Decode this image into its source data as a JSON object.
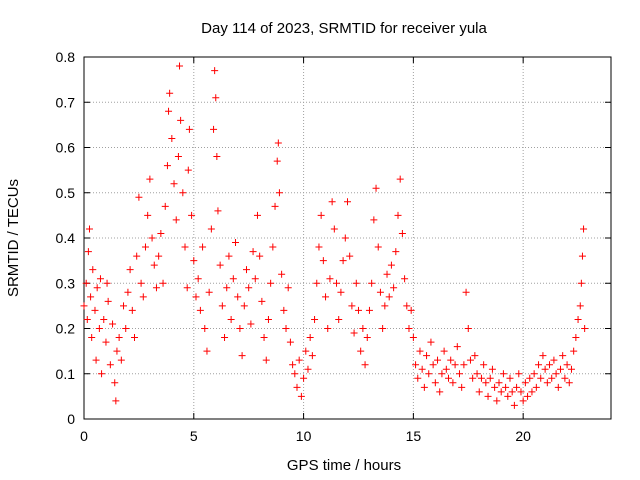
{
  "chart_data": {
    "type": "scatter",
    "title": "Day 114 of 2023, SRMTID for receiver yula",
    "xlabel": "GPS time / hours",
    "ylabel": "SRMTID / TECUs",
    "xlim": [
      0,
      24
    ],
    "ylim": [
      0,
      0.8
    ],
    "x_ticks": [
      0,
      5,
      10,
      15,
      20
    ],
    "x_tick_labels": [
      "0",
      "5",
      "10",
      "15",
      "20"
    ],
    "y_ticks": [
      0,
      0.1,
      0.2,
      0.3,
      0.4,
      0.5,
      0.6,
      0.7,
      0.8
    ],
    "y_tick_labels": [
      "0",
      "0.1",
      "0.2",
      "0.3",
      "0.4",
      "0.5",
      "0.6",
      "0.7",
      "0.8"
    ],
    "grid": true,
    "marker": "+",
    "colors": {
      "points": "#ff0000",
      "grid": "#a0a0a0",
      "frame": "#000000"
    },
    "series": [
      {
        "name": "SRMTID",
        "points": [
          [
            0.0,
            0.25
          ],
          [
            0.1,
            0.3
          ],
          [
            0.15,
            0.22
          ],
          [
            0.2,
            0.37
          ],
          [
            0.25,
            0.42
          ],
          [
            0.3,
            0.27
          ],
          [
            0.35,
            0.18
          ],
          [
            0.4,
            0.33
          ],
          [
            0.5,
            0.24
          ],
          [
            0.55,
            0.13
          ],
          [
            0.6,
            0.29
          ],
          [
            0.7,
            0.2
          ],
          [
            0.75,
            0.31
          ],
          [
            0.8,
            0.1
          ],
          [
            0.9,
            0.22
          ],
          [
            1.0,
            0.17
          ],
          [
            1.05,
            0.3
          ],
          [
            1.1,
            0.26
          ],
          [
            1.2,
            0.12
          ],
          [
            1.3,
            0.21
          ],
          [
            1.4,
            0.08
          ],
          [
            1.45,
            0.04
          ],
          [
            1.5,
            0.15
          ],
          [
            1.6,
            0.18
          ],
          [
            1.7,
            0.13
          ],
          [
            1.8,
            0.25
          ],
          [
            1.9,
            0.2
          ],
          [
            2.0,
            0.28
          ],
          [
            2.1,
            0.33
          ],
          [
            2.2,
            0.24
          ],
          [
            2.3,
            0.18
          ],
          [
            2.4,
            0.36
          ],
          [
            2.5,
            0.49
          ],
          [
            2.6,
            0.3
          ],
          [
            2.7,
            0.27
          ],
          [
            2.8,
            0.38
          ],
          [
            2.9,
            0.45
          ],
          [
            3.0,
            0.53
          ],
          [
            3.1,
            0.4
          ],
          [
            3.2,
            0.34
          ],
          [
            3.3,
            0.29
          ],
          [
            3.4,
            0.36
          ],
          [
            3.5,
            0.41
          ],
          [
            3.6,
            0.3
          ],
          [
            3.7,
            0.47
          ],
          [
            3.8,
            0.56
          ],
          [
            3.85,
            0.68
          ],
          [
            3.9,
            0.72
          ],
          [
            4.0,
            0.62
          ],
          [
            4.1,
            0.52
          ],
          [
            4.2,
            0.44
          ],
          [
            4.3,
            0.58
          ],
          [
            4.35,
            0.78
          ],
          [
            4.4,
            0.66
          ],
          [
            4.5,
            0.5
          ],
          [
            4.6,
            0.38
          ],
          [
            4.7,
            0.29
          ],
          [
            4.75,
            0.55
          ],
          [
            4.8,
            0.64
          ],
          [
            4.9,
            0.45
          ],
          [
            5.0,
            0.35
          ],
          [
            5.1,
            0.27
          ],
          [
            5.2,
            0.31
          ],
          [
            5.3,
            0.24
          ],
          [
            5.4,
            0.38
          ],
          [
            5.5,
            0.2
          ],
          [
            5.6,
            0.15
          ],
          [
            5.7,
            0.28
          ],
          [
            5.8,
            0.42
          ],
          [
            5.9,
            0.64
          ],
          [
            5.95,
            0.77
          ],
          [
            6.0,
            0.71
          ],
          [
            6.05,
            0.58
          ],
          [
            6.1,
            0.46
          ],
          [
            6.2,
            0.34
          ],
          [
            6.3,
            0.25
          ],
          [
            6.4,
            0.18
          ],
          [
            6.5,
            0.29
          ],
          [
            6.6,
            0.36
          ],
          [
            6.7,
            0.22
          ],
          [
            6.8,
            0.31
          ],
          [
            6.9,
            0.39
          ],
          [
            7.0,
            0.27
          ],
          [
            7.1,
            0.2
          ],
          [
            7.2,
            0.14
          ],
          [
            7.3,
            0.25
          ],
          [
            7.4,
            0.33
          ],
          [
            7.5,
            0.29
          ],
          [
            7.6,
            0.21
          ],
          [
            7.7,
            0.37
          ],
          [
            7.8,
            0.31
          ],
          [
            7.9,
            0.45
          ],
          [
            8.0,
            0.36
          ],
          [
            8.1,
            0.26
          ],
          [
            8.2,
            0.18
          ],
          [
            8.3,
            0.13
          ],
          [
            8.4,
            0.22
          ],
          [
            8.5,
            0.3
          ],
          [
            8.6,
            0.38
          ],
          [
            8.7,
            0.47
          ],
          [
            8.8,
            0.57
          ],
          [
            8.85,
            0.61
          ],
          [
            8.9,
            0.5
          ],
          [
            9.0,
            0.32
          ],
          [
            9.1,
            0.24
          ],
          [
            9.2,
            0.2
          ],
          [
            9.3,
            0.29
          ],
          [
            9.4,
            0.17
          ],
          [
            9.5,
            0.12
          ],
          [
            9.6,
            0.1
          ],
          [
            9.7,
            0.07
          ],
          [
            9.8,
            0.13
          ],
          [
            9.9,
            0.05
          ],
          [
            10.0,
            0.09
          ],
          [
            10.1,
            0.15
          ],
          [
            10.2,
            0.11
          ],
          [
            10.3,
            0.18
          ],
          [
            10.4,
            0.14
          ],
          [
            10.5,
            0.22
          ],
          [
            10.6,
            0.3
          ],
          [
            10.7,
            0.38
          ],
          [
            10.8,
            0.45
          ],
          [
            10.9,
            0.35
          ],
          [
            11.0,
            0.27
          ],
          [
            11.1,
            0.2
          ],
          [
            11.2,
            0.31
          ],
          [
            11.3,
            0.48
          ],
          [
            11.4,
            0.42
          ],
          [
            11.5,
            0.3
          ],
          [
            11.6,
            0.22
          ],
          [
            11.7,
            0.28
          ],
          [
            11.8,
            0.35
          ],
          [
            11.9,
            0.4
          ],
          [
            12.0,
            0.48
          ],
          [
            12.1,
            0.36
          ],
          [
            12.2,
            0.25
          ],
          [
            12.3,
            0.19
          ],
          [
            12.4,
            0.3
          ],
          [
            12.5,
            0.24
          ],
          [
            12.6,
            0.15
          ],
          [
            12.7,
            0.2
          ],
          [
            12.8,
            0.12
          ],
          [
            12.9,
            0.18
          ],
          [
            13.0,
            0.24
          ],
          [
            13.1,
            0.3
          ],
          [
            13.2,
            0.44
          ],
          [
            13.3,
            0.51
          ],
          [
            13.4,
            0.38
          ],
          [
            13.5,
            0.28
          ],
          [
            13.6,
            0.2
          ],
          [
            13.7,
            0.25
          ],
          [
            13.8,
            0.32
          ],
          [
            13.9,
            0.27
          ],
          [
            14.0,
            0.34
          ],
          [
            14.1,
            0.29
          ],
          [
            14.2,
            0.37
          ],
          [
            14.3,
            0.45
          ],
          [
            14.4,
            0.53
          ],
          [
            14.5,
            0.41
          ],
          [
            14.6,
            0.31
          ],
          [
            14.7,
            0.25
          ],
          [
            14.8,
            0.2
          ],
          [
            14.9,
            0.24
          ],
          [
            15.0,
            0.18
          ],
          [
            15.1,
            0.12
          ],
          [
            15.2,
            0.09
          ],
          [
            15.3,
            0.15
          ],
          [
            15.4,
            0.11
          ],
          [
            15.5,
            0.07
          ],
          [
            15.6,
            0.14
          ],
          [
            15.7,
            0.1
          ],
          [
            15.8,
            0.17
          ],
          [
            15.9,
            0.12
          ],
          [
            16.0,
            0.08
          ],
          [
            16.1,
            0.13
          ],
          [
            16.2,
            0.06
          ],
          [
            16.3,
            0.1
          ],
          [
            16.4,
            0.15
          ],
          [
            16.5,
            0.11
          ],
          [
            16.6,
            0.09
          ],
          [
            16.7,
            0.13
          ],
          [
            16.8,
            0.08
          ],
          [
            16.9,
            0.12
          ],
          [
            17.0,
            0.16
          ],
          [
            17.1,
            0.1
          ],
          [
            17.2,
            0.07
          ],
          [
            17.3,
            0.12
          ],
          [
            17.4,
            0.28
          ],
          [
            17.5,
            0.2
          ],
          [
            17.6,
            0.13
          ],
          [
            17.7,
            0.09
          ],
          [
            17.8,
            0.14
          ],
          [
            17.9,
            0.1
          ],
          [
            18.0,
            0.06
          ],
          [
            18.1,
            0.09
          ],
          [
            18.2,
            0.12
          ],
          [
            18.3,
            0.08
          ],
          [
            18.4,
            0.05
          ],
          [
            18.5,
            0.09
          ],
          [
            18.6,
            0.11
          ],
          [
            18.7,
            0.07
          ],
          [
            18.8,
            0.04
          ],
          [
            18.9,
            0.08
          ],
          [
            19.0,
            0.06
          ],
          [
            19.1,
            0.1
          ],
          [
            19.2,
            0.07
          ],
          [
            19.3,
            0.05
          ],
          [
            19.4,
            0.09
          ],
          [
            19.5,
            0.06
          ],
          [
            19.6,
            0.03
          ],
          [
            19.7,
            0.07
          ],
          [
            19.8,
            0.1
          ],
          [
            19.9,
            0.06
          ],
          [
            20.0,
            0.04
          ],
          [
            20.1,
            0.08
          ],
          [
            20.2,
            0.05
          ],
          [
            20.3,
            0.09
          ],
          [
            20.4,
            0.06
          ],
          [
            20.5,
            0.1
          ],
          [
            20.6,
            0.07
          ],
          [
            20.7,
            0.12
          ],
          [
            20.8,
            0.09
          ],
          [
            20.9,
            0.14
          ],
          [
            21.0,
            0.11
          ],
          [
            21.1,
            0.08
          ],
          [
            21.2,
            0.12
          ],
          [
            21.3,
            0.09
          ],
          [
            21.4,
            0.13
          ],
          [
            21.5,
            0.1
          ],
          [
            21.6,
            0.07
          ],
          [
            21.7,
            0.11
          ],
          [
            21.8,
            0.14
          ],
          [
            21.9,
            0.09
          ],
          [
            22.0,
            0.12
          ],
          [
            22.1,
            0.08
          ],
          [
            22.2,
            0.11
          ],
          [
            22.3,
            0.15
          ],
          [
            22.4,
            0.18
          ],
          [
            22.5,
            0.22
          ],
          [
            22.6,
            0.25
          ],
          [
            22.65,
            0.3
          ],
          [
            22.7,
            0.36
          ],
          [
            22.75,
            0.42
          ],
          [
            22.8,
            0.2
          ]
        ]
      }
    ]
  }
}
